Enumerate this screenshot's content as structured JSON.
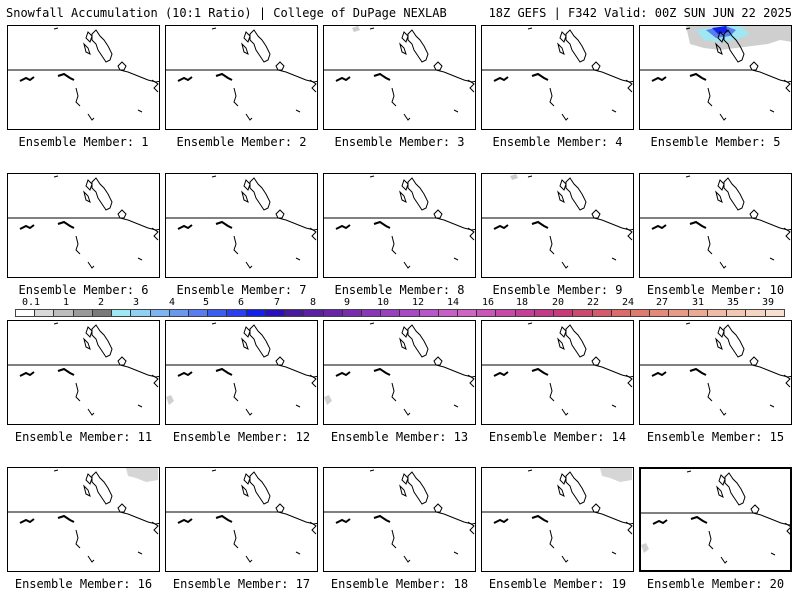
{
  "header": {
    "title_left": "Snowfall Accumulation (10:1 Ratio) | College of DuPage NEXLAB",
    "title_right": "18Z GEFS | F342 Valid: 00Z SUN JUN 22 2025"
  },
  "panels": [
    {
      "label": "Ensemble Member: 1",
      "snow": "none"
    },
    {
      "label": "Ensemble Member: 2",
      "snow": "none"
    },
    {
      "label": "Ensemble Member: 3",
      "snow": "trace"
    },
    {
      "label": "Ensemble Member: 4",
      "snow": "none"
    },
    {
      "label": "Ensemble Member: 5",
      "snow": "heavy-north"
    },
    {
      "label": "Ensemble Member: 6",
      "snow": "none"
    },
    {
      "label": "Ensemble Member: 7",
      "snow": "none"
    },
    {
      "label": "Ensemble Member: 8",
      "snow": "none"
    },
    {
      "label": "Ensemble Member: 9",
      "snow": "trace"
    },
    {
      "label": "Ensemble Member: 10",
      "snow": "none"
    },
    {
      "label": "Ensemble Member: 11",
      "snow": "none"
    },
    {
      "label": "Ensemble Member: 12",
      "snow": "trace-southwest"
    },
    {
      "label": "Ensemble Member: 13",
      "snow": "trace-southwest"
    },
    {
      "label": "Ensemble Member: 14",
      "snow": "none"
    },
    {
      "label": "Ensemble Member: 15",
      "snow": "none"
    },
    {
      "label": "Ensemble Member: 16",
      "snow": "light-north"
    },
    {
      "label": "Ensemble Member: 17",
      "snow": "none"
    },
    {
      "label": "Ensemble Member: 18",
      "snow": "none"
    },
    {
      "label": "Ensemble Member: 19",
      "snow": "light-north"
    },
    {
      "label": "Ensemble Member: 20",
      "snow": "trace-southwest"
    }
  ],
  "colorbar": {
    "labels": [
      "0.1",
      "1",
      "2",
      "3",
      "4",
      "5",
      "6",
      "7",
      "8",
      "9",
      "10",
      "12",
      "14",
      "16",
      "18",
      "20",
      "22",
      "24",
      "27",
      "31",
      "35",
      "39"
    ],
    "colors": [
      "#ffffff",
      "#d9d9d9",
      "#bdbdbd",
      "#9a9a9a",
      "#7a7a7a",
      "#9fe7f3",
      "#8fd0f5",
      "#7fb4f3",
      "#6b98ef",
      "#577df0",
      "#3c5ef0",
      "#2a3ff0",
      "#1320e8",
      "#2a10b8",
      "#4a1a9c",
      "#5a1fa2",
      "#6a24a8",
      "#7a2cb0",
      "#8a36b8",
      "#9840c0",
      "#a84ac6",
      "#b854cc",
      "#c85ec8",
      "#d064c4",
      "#cc55b8",
      "#c84aa8",
      "#c44098",
      "#c23a88",
      "#c83a78",
      "#cc4a70",
      "#d45a6c",
      "#dc6a6a",
      "#e07a70",
      "#e48a7a",
      "#e89a88",
      "#ecaa96",
      "#f0baa6",
      "#f2c8b4",
      "#f5d4c2",
      "#f8e0d0"
    ]
  }
}
